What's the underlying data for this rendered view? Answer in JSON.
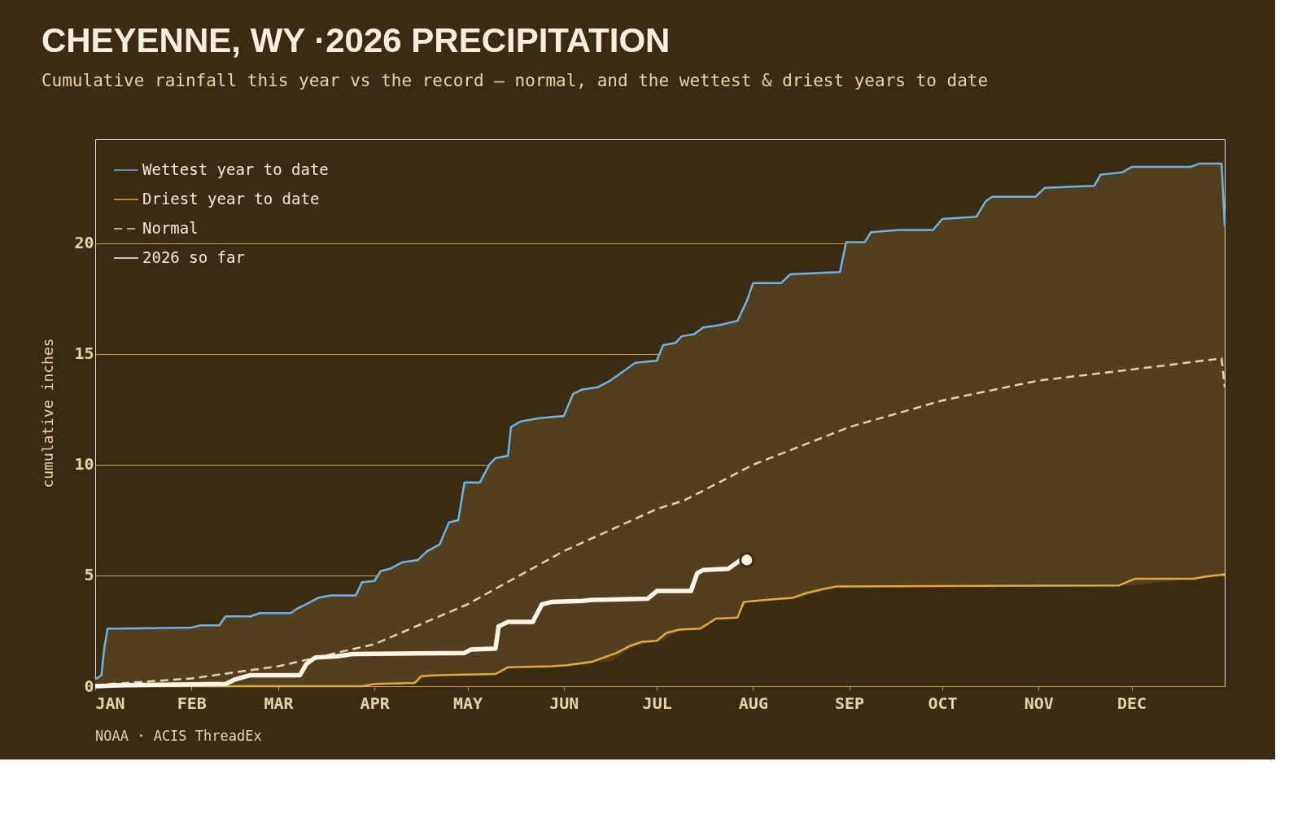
{
  "chart_data": {
    "type": "line",
    "title": "CHEYENNE, WY ·2026 PRECIPITATION",
    "subtitle": "Cumulative rainfall this year vs the record — normal, and the wettest & driest years to date",
    "ylabel": "cumulative inches",
    "annotations": [
      "NOAA · ACIS ThreadEx"
    ],
    "xlim": [
      "2026-01-01",
      "2026-12-31"
    ],
    "xticks": [
      {
        "value": "2026-01-01",
        "label": "JAN"
      },
      {
        "value": "2026-02-01",
        "label": "FEB"
      },
      {
        "value": "2026-03-01",
        "label": "MAR"
      },
      {
        "value": "2026-04-01",
        "label": "APR"
      },
      {
        "value": "2026-05-01",
        "label": "MAY"
      },
      {
        "value": "2026-06-01",
        "label": "JUN"
      },
      {
        "value": "2026-07-01",
        "label": "JUL"
      },
      {
        "value": "2026-08-01",
        "label": "AUG"
      },
      {
        "value": "2026-09-01",
        "label": "SEP"
      },
      {
        "value": "2026-10-01",
        "label": "OCT"
      },
      {
        "value": "2026-11-01",
        "label": "NOV"
      },
      {
        "value": "2026-12-01",
        "label": "DEC"
      }
    ],
    "ylim": [
      0,
      24.7
    ],
    "yticks": [
      0,
      5,
      10,
      15,
      20
    ],
    "grid": "y",
    "legend": "top left",
    "series": [
      {
        "name": "Wettest year to date",
        "color": "#6cb4e4",
        "line_style": "solid",
        "x": [
          "2026-01-01",
          "2026-01-03",
          "2026-01-04",
          "2026-01-05",
          "2026-01-08",
          "2026-02-01",
          "2026-02-04",
          "2026-02-10",
          "2026-02-12",
          "2026-02-20",
          "2026-02-23",
          "2026-03-05",
          "2026-03-07",
          "2026-03-10",
          "2026-03-14",
          "2026-03-18",
          "2026-03-26",
          "2026-03-28",
          "2026-04-01",
          "2026-04-03",
          "2026-04-06",
          "2026-04-10",
          "2026-04-15",
          "2026-04-18",
          "2026-04-22",
          "2026-04-25",
          "2026-04-28",
          "2026-04-30",
          "2026-05-05",
          "2026-05-08",
          "2026-05-10",
          "2026-05-14",
          "2026-05-15",
          "2026-05-18",
          "2026-05-24",
          "2026-06-01",
          "2026-06-04",
          "2026-06-07",
          "2026-06-12",
          "2026-06-16",
          "2026-06-20",
          "2026-06-24",
          "2026-07-01",
          "2026-07-03",
          "2026-07-07",
          "2026-07-09",
          "2026-07-13",
          "2026-07-16",
          "2026-07-21",
          "2026-07-27",
          "2026-07-30",
          "2026-08-01",
          "2026-08-10",
          "2026-08-13",
          "2026-08-29",
          "2026-08-31",
          "2026-09-06",
          "2026-09-08",
          "2026-09-17",
          "2026-09-28",
          "2026-10-01",
          "2026-10-12",
          "2026-10-15",
          "2026-10-17",
          "2026-10-31",
          "2026-11-03",
          "2026-11-19",
          "2026-11-21",
          "2026-11-28",
          "2026-12-01",
          "2026-12-20",
          "2026-12-23",
          "2026-12-30",
          "2026-12-31"
        ],
        "values": [
          0.3,
          0.5,
          1.8,
          2.6,
          2.6,
          2.65,
          2.75,
          2.75,
          3.15,
          3.15,
          3.3,
          3.3,
          3.5,
          3.7,
          4.0,
          4.1,
          4.1,
          4.7,
          4.75,
          5.2,
          5.3,
          5.6,
          5.7,
          6.1,
          6.4,
          7.4,
          7.5,
          9.2,
          9.2,
          10.0,
          10.3,
          10.4,
          11.7,
          11.95,
          12.1,
          12.2,
          13.2,
          13.4,
          13.5,
          13.8,
          14.2,
          14.6,
          14.7,
          15.4,
          15.5,
          15.8,
          15.9,
          16.2,
          16.3,
          16.5,
          17.4,
          18.2,
          18.2,
          18.6,
          18.7,
          20.05,
          20.05,
          20.5,
          20.6,
          20.6,
          21.1,
          21.2,
          21.9,
          22.1,
          22.1,
          22.5,
          22.6,
          23.1,
          23.2,
          23.45,
          23.45,
          23.6,
          23.6,
          20.8
        ],
        "upper": [
          0.3,
          0.5,
          1.8,
          2.6,
          2.6,
          2.65,
          2.75,
          2.75,
          3.15,
          3.15,
          3.3,
          3.3,
          3.5,
          3.7,
          4.0,
          4.1,
          4.1,
          4.7,
          4.75,
          5.2,
          5.3,
          5.6,
          5.7,
          6.1,
          6.4,
          7.4,
          7.5,
          9.2,
          9.2,
          10.0,
          10.3,
          10.4,
          11.7,
          11.95,
          12.1,
          12.2,
          13.2,
          13.4,
          13.5,
          13.8,
          14.2,
          14.6,
          14.7,
          15.4,
          15.5,
          15.8,
          15.9,
          16.2,
          16.3,
          16.5,
          17.4,
          18.2,
          18.2,
          18.6,
          18.7,
          20.05,
          20.05,
          20.5,
          20.6,
          20.6,
          21.1,
          21.2,
          21.9,
          22.1,
          22.1,
          22.5,
          22.6,
          23.1,
          23.2,
          23.45,
          23.45,
          23.6,
          23.6,
          20.8
        ],
        "lower": [
          0,
          0,
          0,
          0,
          0,
          0,
          0,
          0,
          0,
          0,
          0,
          0,
          0,
          0,
          0,
          0,
          0,
          0,
          0.1,
          0.1,
          0.1,
          0.1,
          0.15,
          0.45,
          0.5,
          0.5,
          0.5,
          0.5,
          0.5,
          0.5,
          0.55,
          0.85,
          0.85,
          0.85,
          0.85,
          0.9,
          0.95,
          0.95,
          1.1,
          1.1,
          1.5,
          1.8,
          2.05,
          2.05,
          2.4,
          2.55,
          2.55,
          2.6,
          3.05,
          3.1,
          3.8,
          3.8,
          3.9,
          3.9,
          4.5,
          4.5,
          4.5,
          4.5,
          4.5,
          4.5,
          4.5,
          4.5,
          4.5,
          4.5,
          4.5,
          4.5,
          4.5,
          4.5,
          4.55,
          4.55,
          4.85,
          4.85,
          4.95,
          5.05
        ]
      },
      {
        "name": "Driest year to date",
        "color": "#e0aa3e",
        "line_style": "solid",
        "x": [
          "2026-01-01",
          "2026-03-28",
          "2026-04-01",
          "2026-04-14",
          "2026-04-16",
          "2026-04-21",
          "2026-05-10",
          "2026-05-14",
          "2026-05-28",
          "2026-06-02",
          "2026-06-10",
          "2026-06-18",
          "2026-06-22",
          "2026-06-26",
          "2026-07-01",
          "2026-07-04",
          "2026-07-08",
          "2026-07-15",
          "2026-07-20",
          "2026-07-27",
          "2026-07-29",
          "2026-08-05",
          "2026-08-14",
          "2026-08-18",
          "2026-08-24",
          "2026-08-28",
          "2026-11-27",
          "2026-12-02",
          "2026-12-21",
          "2026-12-25",
          "2026-12-31"
        ],
        "values": [
          0,
          0,
          0.1,
          0.15,
          0.45,
          0.5,
          0.55,
          0.85,
          0.9,
          0.95,
          1.1,
          1.5,
          1.8,
          2.0,
          2.05,
          2.4,
          2.55,
          2.6,
          3.05,
          3.1,
          3.8,
          3.9,
          4.0,
          4.2,
          4.4,
          4.5,
          4.55,
          4.85,
          4.85,
          4.95,
          5.05
        ]
      },
      {
        "name": "Normal",
        "color": "#e6d3a8",
        "line_style": "dashed",
        "x": [
          "2026-01-01",
          "2026-02-01",
          "2026-03-01",
          "2026-04-01",
          "2026-05-01",
          "2026-06-01",
          "2026-07-01",
          "2026-07-10",
          "2026-08-01",
          "2026-09-01",
          "2026-10-01",
          "2026-11-01",
          "2026-12-01",
          "2026-12-30",
          "2026-12-31"
        ],
        "values": [
          0.05,
          0.35,
          0.9,
          1.9,
          3.7,
          6.1,
          8.0,
          8.4,
          10.0,
          11.7,
          12.9,
          13.8,
          14.3,
          14.8,
          13.5
        ]
      },
      {
        "name": "2026 so far",
        "color": "#fbf6ea",
        "line_style": "solid",
        "x": [
          "2026-01-01",
          "2026-01-10",
          "2026-02-12",
          "2026-02-15",
          "2026-02-20",
          "2026-03-08",
          "2026-03-10",
          "2026-03-13",
          "2026-03-20",
          "2026-03-25",
          "2026-04-30",
          "2026-05-02",
          "2026-05-10",
          "2026-05-11",
          "2026-05-14",
          "2026-05-22",
          "2026-05-25",
          "2026-05-28",
          "2026-06-07",
          "2026-06-10",
          "2026-06-28",
          "2026-07-01",
          "2026-07-12",
          "2026-07-14",
          "2026-07-16",
          "2026-07-24",
          "2026-07-26",
          "2026-07-28"
        ],
        "values": [
          0,
          0.05,
          0.1,
          0.3,
          0.5,
          0.5,
          1.0,
          1.3,
          1.35,
          1.45,
          1.5,
          1.65,
          1.7,
          2.7,
          2.9,
          2.9,
          3.7,
          3.8,
          3.85,
          3.9,
          3.95,
          4.3,
          4.3,
          5.1,
          5.25,
          5.3,
          5.5,
          5.7
        ]
      },
      {
        "type": "scatter",
        "color": "#fbf6ea",
        "x": [
          "2026-07-30"
        ],
        "values": [
          5.7
        ]
      }
    ]
  }
}
